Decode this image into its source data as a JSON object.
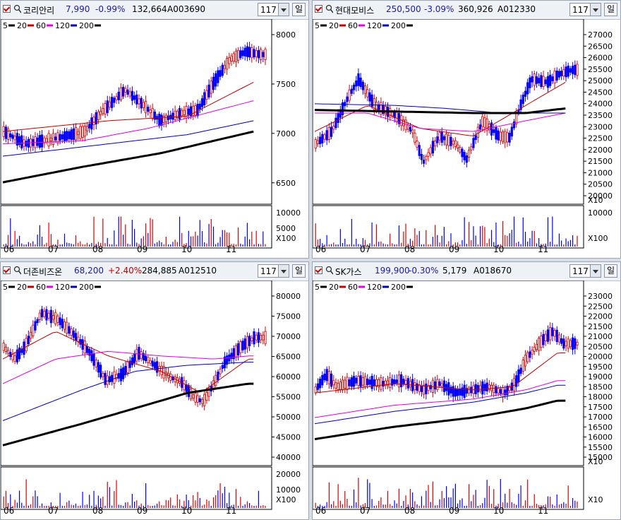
{
  "ma_legend": [
    {
      "label": "5",
      "color": "#000000"
    },
    {
      "label": "20",
      "color": "#c00000"
    },
    {
      "label": "60",
      "color": "#e000e0"
    },
    {
      "label": "120",
      "color": "#0000b0"
    },
    {
      "label": "200",
      "color": "#000000"
    }
  ],
  "months": [
    "06",
    "07",
    "08",
    "09",
    "10",
    "11"
  ],
  "panels": [
    {
      "name": "코리안리",
      "price": "7,990",
      "change": "-0.99%",
      "dir": "dn",
      "volume": "132,664",
      "code": "A003690",
      "period": "117",
      "unit": "일",
      "y_ticks": [
        "8000",
        "7500",
        "7000",
        "6500"
      ],
      "vol_ticks": [
        "10000",
        "5000"
      ],
      "vol_unit": "X100"
    },
    {
      "name": "현대모비스",
      "price": "250,500",
      "change": "-3.09%",
      "dir": "dn",
      "volume": "360,926",
      "code": "A012330",
      "period": "117",
      "unit": "일",
      "y_ticks": [
        "27000",
        "26500",
        "26000",
        "25500",
        "25000",
        "24500",
        "24000",
        "23500",
        "23000",
        "22500",
        "22000",
        "21500",
        "21000",
        "20500",
        "20000"
      ],
      "y_unit": "X10",
      "vol_ticks": [
        "10000"
      ],
      "vol_unit": "X100"
    },
    {
      "name": "더존비즈온",
      "price": "68,200",
      "change": "+2.40%",
      "dir": "up",
      "volume": "284,885",
      "code": "A012510",
      "period": "117",
      "unit": "일",
      "y_ticks": [
        "80000",
        "75000",
        "70000",
        "65000",
        "60000",
        "55000",
        "50000",
        "45000",
        "40000"
      ],
      "vol_ticks": [
        "20000",
        "10000"
      ],
      "vol_unit": "X100"
    },
    {
      "name": "SK가스",
      "price": "199,900",
      "change": "-0.30%",
      "dir": "dn",
      "volume": "5,179",
      "code": "A018670",
      "period": "117",
      "unit": "일",
      "y_ticks": [
        "23000",
        "22500",
        "22000",
        "21500",
        "21000",
        "20500",
        "20000",
        "19500",
        "19000",
        "18500",
        "18000",
        "17500",
        "17000",
        "16500",
        "16000",
        "15500",
        "15000"
      ],
      "y_unit": "X10",
      "vol_ticks": [],
      "vol_unit": "X10"
    }
  ]
}
